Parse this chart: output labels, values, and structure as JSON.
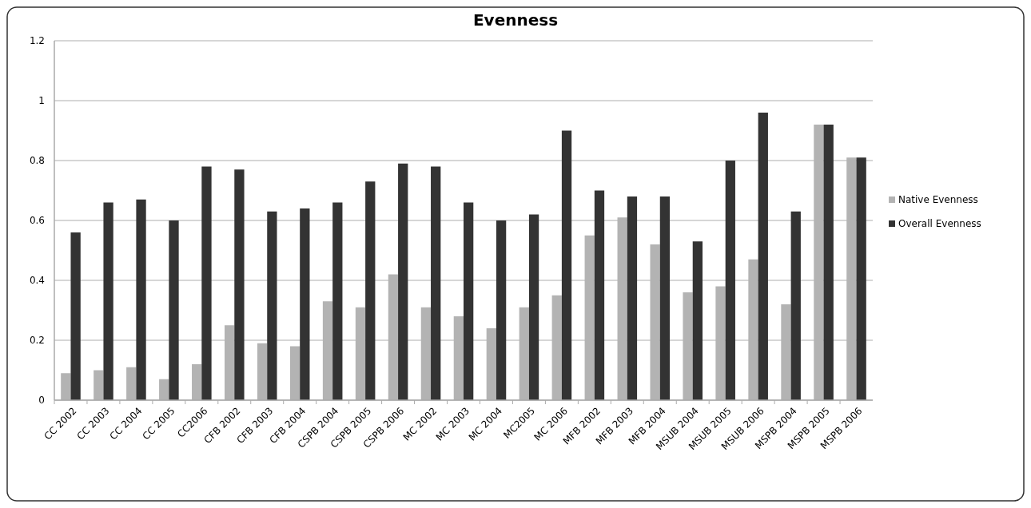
{
  "chart_data": {
    "type": "bar",
    "title": "Evenness",
    "categories": [
      "CC 2002",
      "CC 2003",
      "CC 2004",
      "CC 2005",
      "CC2006",
      "CFB 2002",
      "CFB 2003",
      "CFB 2004",
      "CSPB 2004",
      "CSPB 2005",
      "CSPB 2006",
      "MC 2002",
      "MC 2003",
      "MC 2004",
      "MC2005",
      "MC 2006",
      "MFB 2002",
      "MFB 2003",
      "MFB 2004",
      "MSUB 2004",
      "MSUB 2005",
      "MSUB 2006",
      "MSPB 2004",
      "MSPB 2005",
      "MSPB 2006"
    ],
    "series": [
      {
        "name": "Native Evenness",
        "color": "#b3b3b3",
        "values": [
          0.09,
          0.1,
          0.11,
          0.07,
          0.12,
          0.25,
          0.19,
          0.18,
          0.33,
          0.31,
          0.42,
          0.31,
          0.28,
          0.24,
          0.31,
          0.35,
          0.55,
          0.61,
          0.52,
          0.36,
          0.38,
          0.47,
          0.32,
          0.92,
          0.81
        ]
      },
      {
        "name": "Overall Evenness",
        "color": "#333333",
        "values": [
          0.56,
          0.66,
          0.67,
          0.6,
          0.78,
          0.77,
          0.63,
          0.64,
          0.66,
          0.73,
          0.79,
          0.78,
          0.66,
          0.6,
          0.62,
          0.9,
          0.7,
          0.68,
          0.68,
          0.53,
          0.8,
          0.96,
          0.63,
          0.92,
          0.81
        ]
      }
    ],
    "ylim": [
      0,
      1.2
    ],
    "yticks": [
      0,
      0.2,
      0.4,
      0.6,
      0.8,
      1,
      1.2
    ],
    "grid": "y",
    "legend": "right"
  }
}
